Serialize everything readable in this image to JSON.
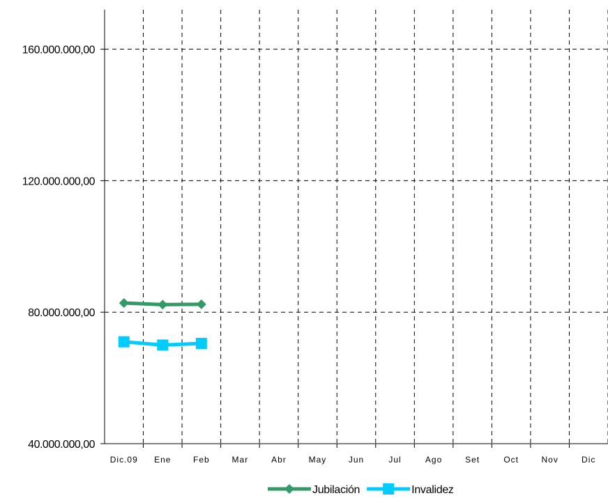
{
  "chart_data": {
    "type": "line",
    "title": "",
    "xlabel": "",
    "ylabel": "",
    "categories": [
      "Dic.09",
      "Ene",
      "Feb",
      "Mar",
      "Abr",
      "May",
      "Jun",
      "Jul",
      "Ago",
      "Set",
      "Oct",
      "Nov",
      "Dic"
    ],
    "y_ticks": [
      40000000,
      80000000,
      120000000,
      160000000
    ],
    "y_tick_labels": [
      "40.000.000,00",
      "80.000.000,00",
      "120.000.000,00",
      "160.000.000,00"
    ],
    "ylim": [
      40000000,
      172000000
    ],
    "grid": true,
    "legend_position": "bottom",
    "series": [
      {
        "name": "Jubilación",
        "color": "#339966",
        "marker": "diamond",
        "values": [
          82800000,
          82300000,
          82400000,
          null,
          null,
          null,
          null,
          null,
          null,
          null,
          null,
          null,
          null
        ]
      },
      {
        "name": "Invalidez",
        "color": "#00CCFF",
        "marker": "square",
        "values": [
          71000000,
          70000000,
          70500000,
          null,
          null,
          null,
          null,
          null,
          null,
          null,
          null,
          null,
          null
        ]
      }
    ]
  }
}
